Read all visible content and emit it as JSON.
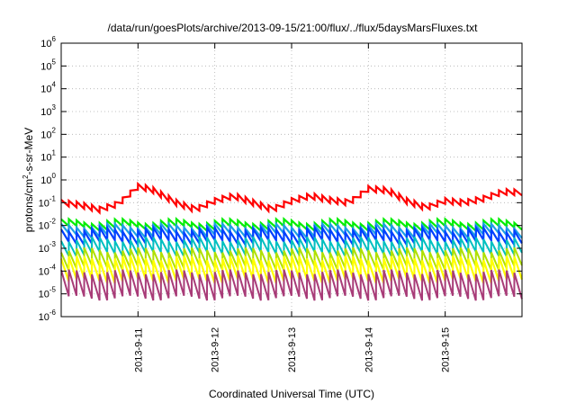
{
  "chart_data": {
    "type": "line",
    "title": "/data/run/goesPlots/archive/2013-09-15/21:00/flux/../flux/5daysMarsFluxes.txt",
    "xlabel": "Coordinated Universal Time (UTC)",
    "ylabel": {
      "base": "protons/cm",
      "sup": "2",
      "rest": "-s-sr-MeV"
    },
    "y_scale": "log",
    "ylim": [
      1e-06,
      1000000.0
    ],
    "y_ticks": [
      {
        "base": "10",
        "exp": "-6",
        "value": 1e-06
      },
      {
        "base": "10",
        "exp": "-5",
        "value": 1e-05
      },
      {
        "base": "10",
        "exp": "-4",
        "value": 0.0001
      },
      {
        "base": "10",
        "exp": "-3",
        "value": 0.001
      },
      {
        "base": "10",
        "exp": "-2",
        "value": 0.01
      },
      {
        "base": "10",
        "exp": "-1",
        "value": 0.1
      },
      {
        "base": "10",
        "exp": "0",
        "value": 1
      },
      {
        "base": "10",
        "exp": "1",
        "value": 10
      },
      {
        "base": "10",
        "exp": "2",
        "value": 100
      },
      {
        "base": "10",
        "exp": "3",
        "value": 1000
      },
      {
        "base": "10",
        "exp": "4",
        "value": 10000
      },
      {
        "base": "10",
        "exp": "5",
        "value": 100000
      },
      {
        "base": "10",
        "exp": "6",
        "value": 1000000
      }
    ],
    "x_range": [
      "2013-09-10T00:00",
      "2013-09-16T00:00"
    ],
    "x_ticks": [
      {
        "label": "2013-9-11",
        "value": "2013-09-11T00:00"
      },
      {
        "label": "2013-9-12",
        "value": "2013-09-12T00:00"
      },
      {
        "label": "2013-9-13",
        "value": "2013-09-13T00:00"
      },
      {
        "label": "2013-9-14",
        "value": "2013-09-14T00:00"
      },
      {
        "label": "2013-9-15",
        "value": "2013-09-15T00:00"
      }
    ],
    "grid": true,
    "series": [
      {
        "color": "#ff0000",
        "width": 2.2,
        "values": [
          [
            "2013-09-10T00:00",
            0.1
          ],
          [
            "2013-09-10T06:00",
            0.08
          ],
          [
            "2013-09-10T12:00",
            0.05
          ],
          [
            "2013-09-10T18:00",
            0.09
          ],
          [
            "2013-09-11T00:00",
            0.5
          ],
          [
            "2013-09-11T04:00",
            0.4
          ],
          [
            "2013-09-11T12:00",
            0.1
          ],
          [
            "2013-09-11T18:00",
            0.05
          ],
          [
            "2013-09-12T00:00",
            0.12
          ],
          [
            "2013-09-12T06:00",
            0.2
          ],
          [
            "2013-09-12T12:00",
            0.1
          ],
          [
            "2013-09-12T18:00",
            0.05
          ],
          [
            "2013-09-13T00:00",
            0.12
          ],
          [
            "2013-09-13T06:00",
            0.2
          ],
          [
            "2013-09-13T12:00",
            0.13
          ],
          [
            "2013-09-13T18:00",
            0.1
          ],
          [
            "2013-09-14T00:00",
            0.4
          ],
          [
            "2013-09-14T06:00",
            0.35
          ],
          [
            "2013-09-14T12:00",
            0.12
          ],
          [
            "2013-09-14T18:00",
            0.06
          ],
          [
            "2013-09-15T00:00",
            0.12
          ],
          [
            "2013-09-15T06:00",
            0.1
          ],
          [
            "2013-09-15T12:00",
            0.15
          ],
          [
            "2013-09-15T18:00",
            0.3
          ],
          [
            "2013-09-16T00:00",
            0.28
          ]
        ],
        "sawtooth_cycles_per_day": 10,
        "sawtooth_peak_to_trough": 1.8
      },
      {
        "color": "#00ee00",
        "width": 2.2,
        "base": 0.011,
        "peak_to_trough": 2.0,
        "cycles_per_day": 10
      },
      {
        "color": "#1ea0e6",
        "width": 2.2,
        "base": 0.006,
        "peak_to_trough": 2.6,
        "cycles_per_day": 10
      },
      {
        "color": "#0040ff",
        "width": 2.2,
        "base": 0.0035,
        "peak_to_trough": 3.5,
        "cycles_per_day": 10
      },
      {
        "color": "#00c0c0",
        "width": 2.0,
        "base": 0.0012,
        "peak_to_trough": 4.5,
        "cycles_per_day": 10
      },
      {
        "color": "#b0e000",
        "width": 2.0,
        "base": 0.00035,
        "peak_to_trough": 6.0,
        "cycles_per_day": 10
      },
      {
        "color": "#ffff00",
        "width": 2.2,
        "base": 0.00012,
        "peak_to_trough": 10.0,
        "cycles_per_day": 10
      },
      {
        "color": "#a83c78",
        "width": 2.0,
        "base": 2.5e-05,
        "peak_to_trough": 14.0,
        "cycles_per_day": 10
      }
    ]
  }
}
